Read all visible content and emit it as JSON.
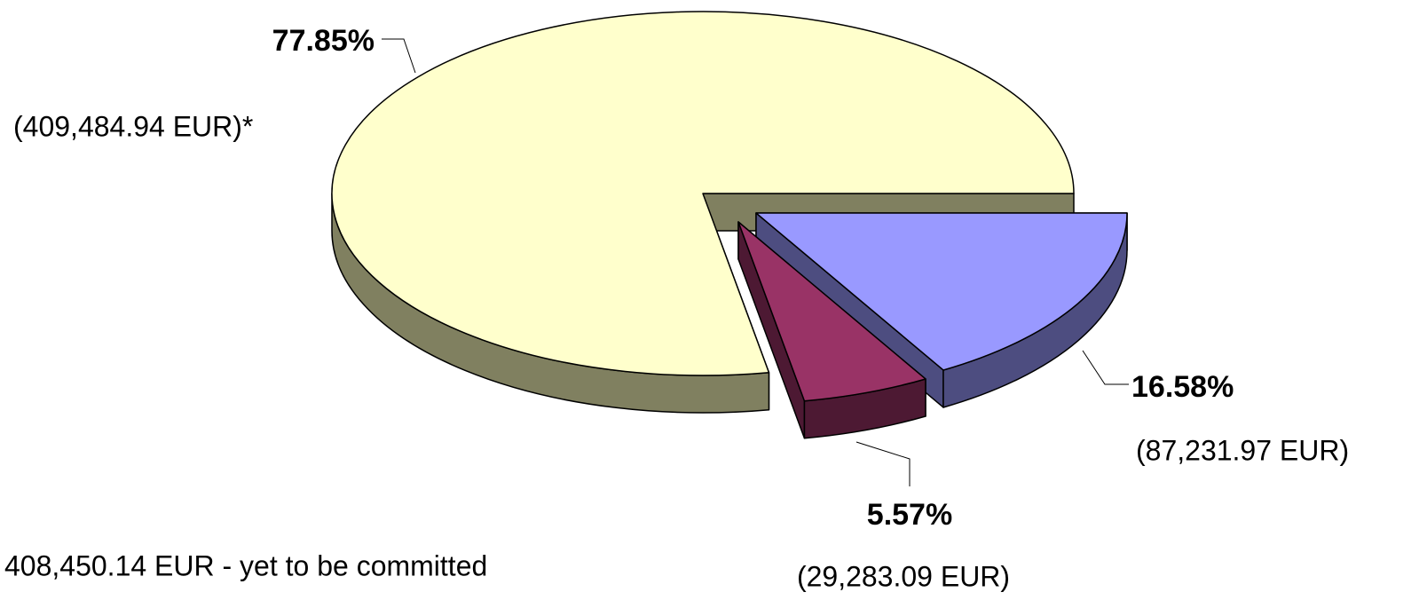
{
  "chart_data": {
    "type": "pie",
    "values": [
      16.58,
      5.57,
      77.85
    ],
    "value_labels": [
      "16.58%",
      "5.57%",
      "77.85%"
    ],
    "amounts": [
      87231.97,
      29283.09,
      409484.94
    ],
    "amount_labels": [
      "(87,231.97 EUR)",
      "(29,283.09 EUR)",
      "(409,484.94 EUR)*"
    ],
    "colors": [
      "#9999ff",
      "#993366",
      "#ffffcc"
    ],
    "side_colors": [
      "#4d4d80",
      "#4d1933",
      "#808060"
    ],
    "note": "408,450.14 EUR - yet to be committed"
  }
}
